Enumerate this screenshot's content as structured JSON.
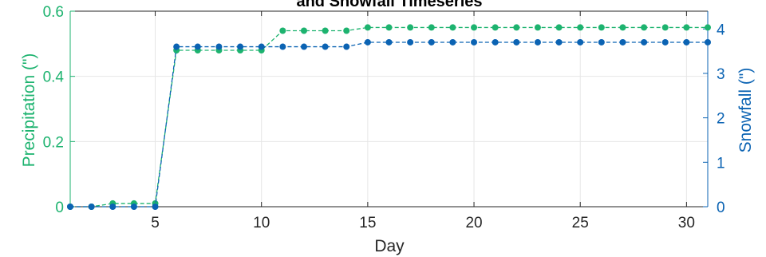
{
  "chart_data": {
    "type": "line",
    "title": "and Snowfall Timeseries",
    "xlabel": "Day",
    "ylabel_left": "Precipitation (\")",
    "ylabel_right": "Snowfall (\")",
    "xlim": [
      1,
      31
    ],
    "ylim_left": [
      0,
      0.6
    ],
    "ylim_right": [
      0,
      4.4
    ],
    "x_ticks": [
      5,
      10,
      15,
      20,
      25,
      30
    ],
    "y_ticks_left": [
      0,
      0.2,
      0.4,
      0.6
    ],
    "y_ticks_right": [
      0,
      1,
      2,
      3,
      4
    ],
    "grid": true,
    "x": [
      1,
      2,
      3,
      4,
      5,
      6,
      7,
      8,
      9,
      10,
      11,
      12,
      13,
      14,
      15,
      16,
      17,
      18,
      19,
      20,
      21,
      22,
      23,
      24,
      25,
      26,
      27,
      28,
      29,
      30,
      31
    ],
    "series": [
      {
        "axis": "left",
        "color": "#1db36f",
        "line_style": "dashed",
        "marker": "circle",
        "values": [
          0,
          0,
          0.01,
          0.01,
          0.01,
          0.48,
          0.48,
          0.48,
          0.48,
          0.48,
          0.54,
          0.54,
          0.54,
          0.54,
          0.55,
          0.55,
          0.55,
          0.55,
          0.55,
          0.55,
          0.55,
          0.55,
          0.55,
          0.55,
          0.55,
          0.55,
          0.55,
          0.55,
          0.55,
          0.55,
          0.55
        ]
      },
      {
        "axis": "right",
        "color": "#0b63b3",
        "line_style": "dashed",
        "marker": "circle",
        "values": [
          0,
          0,
          0,
          0,
          0,
          3.6,
          3.6,
          3.6,
          3.6,
          3.6,
          3.6,
          3.6,
          3.6,
          3.6,
          3.7,
          3.7,
          3.7,
          3.7,
          3.7,
          3.7,
          3.7,
          3.7,
          3.7,
          3.7,
          3.7,
          3.7,
          3.7,
          3.7,
          3.7,
          3.7,
          3.7
        ]
      }
    ]
  },
  "colors": {
    "left_axis": "#1db36f",
    "right_axis": "#0b63b3",
    "grid": "#e6e6e6",
    "axis_dark": "#262626"
  }
}
